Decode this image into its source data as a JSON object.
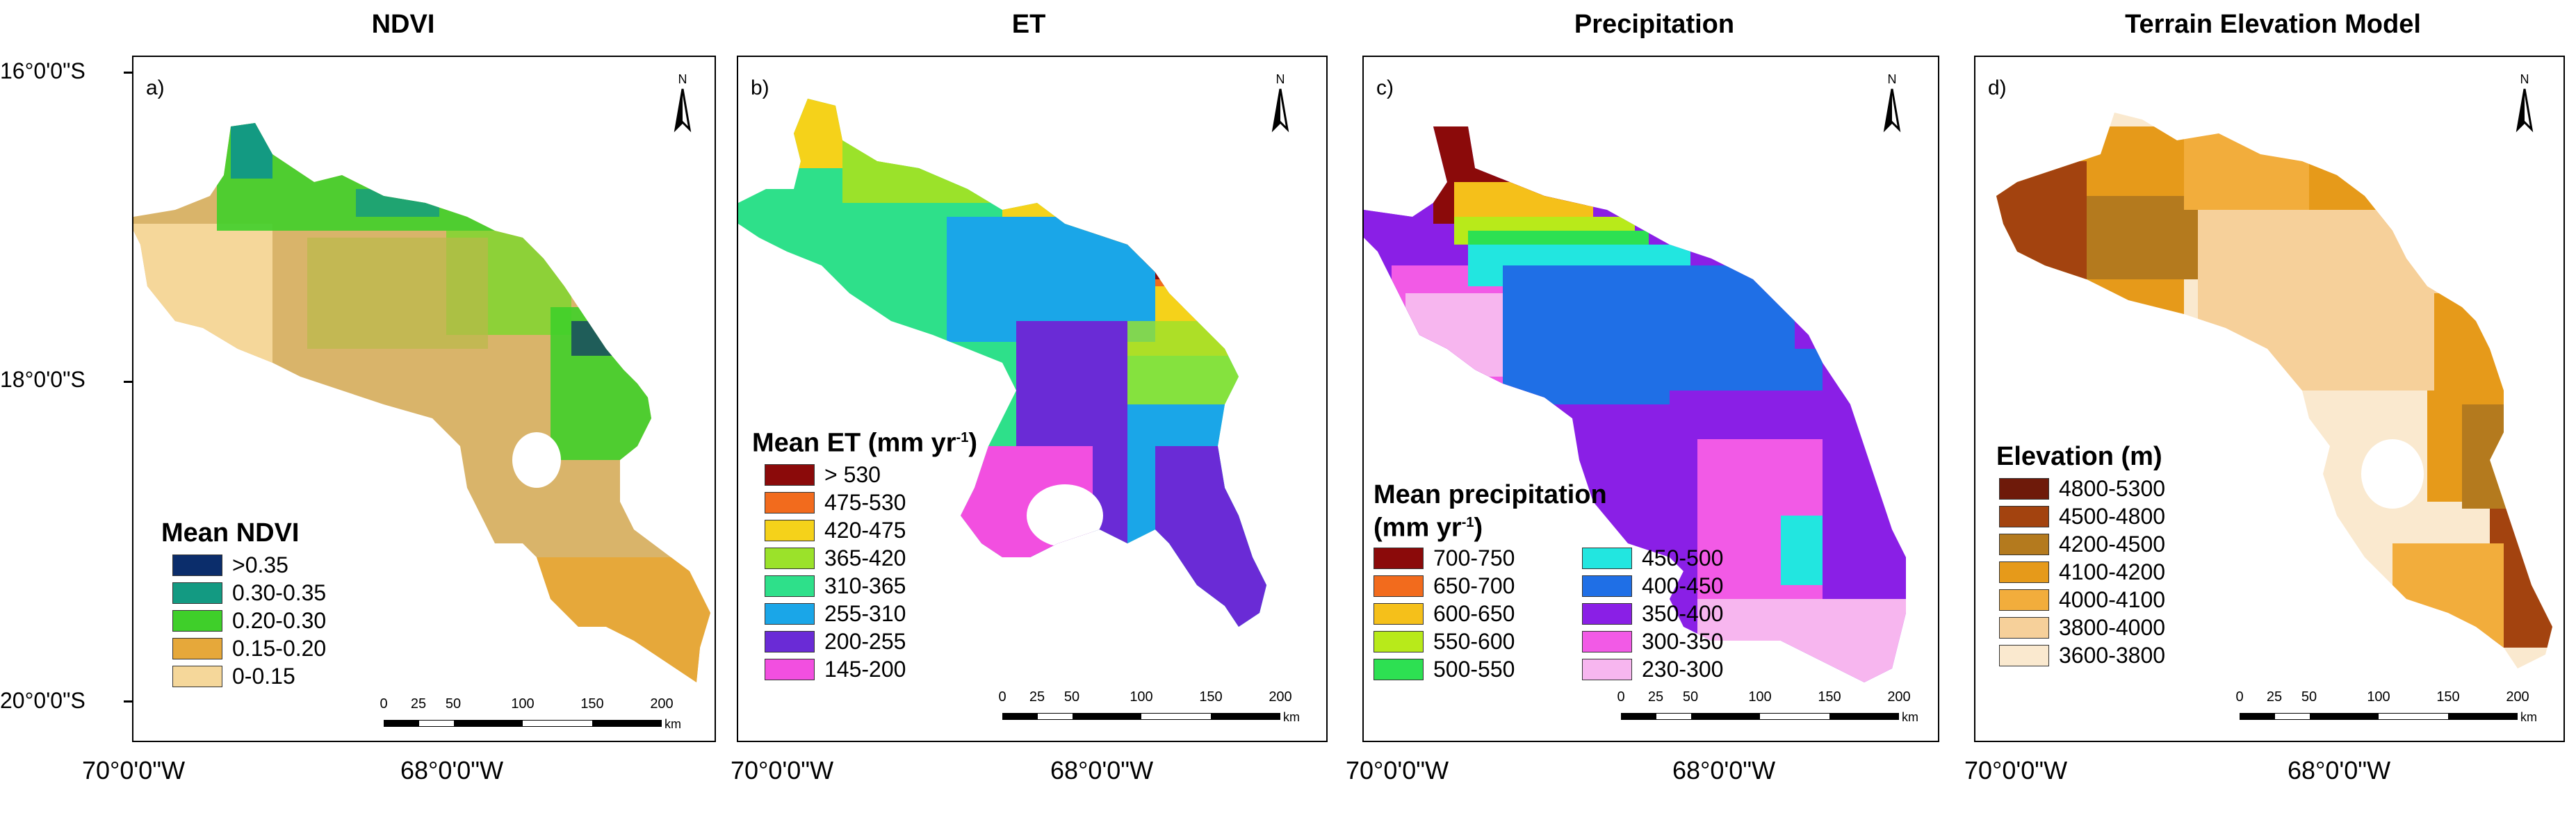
{
  "panels": [
    {
      "title": "NDVI",
      "tag": "a)",
      "legend_title": "Mean NDVI",
      "legend": [
        {
          "label": ">0.35",
          "color": "#0b2d6b"
        },
        {
          "label": "0.30-0.35",
          "color": "#139a82"
        },
        {
          "label": "0.20-0.30",
          "color": "#3fcf2a"
        },
        {
          "label": "0.15-0.20",
          "color": "#e6a83a"
        },
        {
          "label": "0-0.15",
          "color": "#f5d79a"
        }
      ]
    },
    {
      "title": "ET",
      "tag": "b)",
      "legend_title": "Mean ET (mm yr",
      "legend_sup": "-1",
      "legend_close": ")",
      "legend": [
        {
          "label": "> 530",
          "color": "#8b0a0a"
        },
        {
          "label": "475-530",
          "color": "#f26b1d"
        },
        {
          "label": "420-475",
          "color": "#f5d21a"
        },
        {
          "label": "365-420",
          "color": "#9be22a"
        },
        {
          "label": "310-365",
          "color": "#2ee08a"
        },
        {
          "label": "255-310",
          "color": "#1aa6e8"
        },
        {
          "label": "200-255",
          "color": "#6a2bd6"
        },
        {
          "label": "145-200",
          "color": "#f24fe0"
        }
      ]
    },
    {
      "title": "Precipitation",
      "tag": "c)",
      "legend_title_1": "Mean precipitation",
      "legend_title_2": "(mm yr",
      "legend_sup": "-1",
      "legend_close": ")",
      "legend": [
        {
          "label": "700-750",
          "color": "#8b0a0a"
        },
        {
          "label": "650-700",
          "color": "#f26b1d"
        },
        {
          "label": "600-650",
          "color": "#f5c01a"
        },
        {
          "label": "550-600",
          "color": "#b8ea1a"
        },
        {
          "label": "500-550",
          "color": "#2de052"
        },
        {
          "label": "450-500",
          "color": "#22e6e0"
        },
        {
          "label": "400-450",
          "color": "#1f6fe6"
        },
        {
          "label": "350-400",
          "color": "#8a1fe6"
        },
        {
          "label": "300-350",
          "color": "#f25ae6"
        },
        {
          "label": "230-300",
          "color": "#f7b6ef"
        }
      ]
    },
    {
      "title": "Terrain Elevation Model",
      "tag": "d)",
      "legend_title": "Elevation (m)",
      "legend": [
        {
          "label": "4800-5300",
          "color": "#6e1a0a"
        },
        {
          "label": "4500-4800",
          "color": "#a3430f"
        },
        {
          "label": "4200-4500",
          "color": "#b47a1e"
        },
        {
          "label": "4100-4200",
          "color": "#e69a1a"
        },
        {
          "label": "4000-4100",
          "color": "#f2ad3c"
        },
        {
          "label": "3800-4000",
          "color": "#f6d09a"
        },
        {
          "label": "3600-3800",
          "color": "#fae9cf"
        }
      ]
    }
  ],
  "north_label": "N",
  "lat_labels": [
    "16°0'0\"S",
    "18°0'0\"S",
    "20°0'0\"S"
  ],
  "lon_labels": [
    "70°0'0\"W",
    "68°0'0\"W",
    "70°0'0\"W",
    "68°0'0\"W",
    "70°0'0\"W",
    "68°0'0\"W",
    "70°0'0\"W",
    "68°0'0\"W"
  ],
  "scale": {
    "ticks": [
      "0",
      "25",
      "50",
      "100",
      "150",
      "200"
    ],
    "unit": "km"
  }
}
